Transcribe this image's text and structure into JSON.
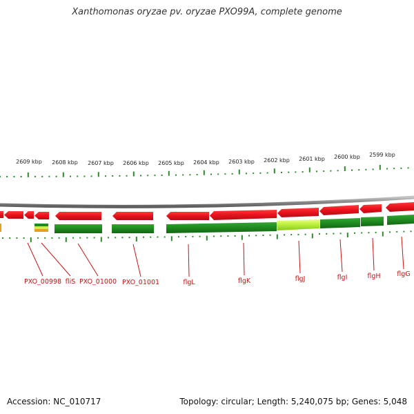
{
  "title": "Xanthomonas oryzae pv. oryzae PXO99A, complete genome",
  "footer": {
    "accession": "Accession: NC_010717",
    "summary": "Topology: circular; Length: 5,240,075 bp; Genes: 5,048"
  },
  "colors": {
    "forward_genes": "#e8121c",
    "reverse_genes": "#1f8a1f",
    "gene_labels": "#cc1111",
    "ticks": "#2a8a2a",
    "backbone": "#8a8a8a"
  },
  "ruler": {
    "labels": [
      "2609 kbp",
      "2608 kbp",
      "2607 kbp",
      "2606 kbp",
      "2605 kbp",
      "2604 kbp",
      "2603 kbp",
      "2602 kbp",
      "2601 kbp",
      "2600 kbp",
      "2599 kbp"
    ]
  },
  "genes": [
    "PXO_00998",
    "fliS",
    "PXO_01000",
    "PXO_01001",
    "flgL",
    "flgK",
    "flgJ",
    "flgI",
    "flgH",
    "flgG"
  ]
}
